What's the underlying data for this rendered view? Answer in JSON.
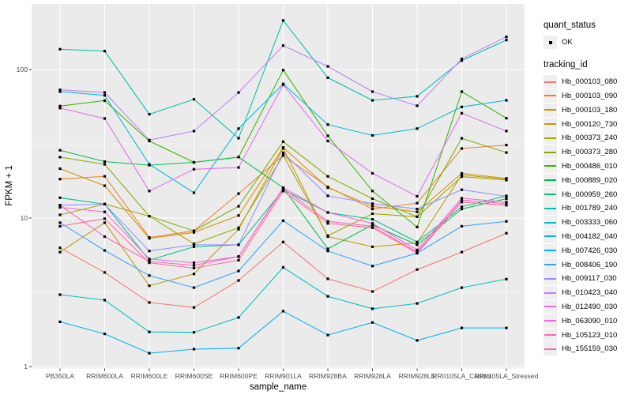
{
  "chart_data": {
    "type": "line",
    "title": "",
    "xlabel": "sample_name",
    "ylabel": "FPKM + 1",
    "y_scale": "log10",
    "y_ticks": [
      1,
      10,
      100
    ],
    "y_tick_labels": [
      "1",
      "10",
      "100"
    ],
    "y_minor_gridlines": [
      3.162,
      31.62
    ],
    "ylim": [
      0.95,
      270
    ],
    "grid": true,
    "legend_position": "right",
    "panel_background": "#EBEBEB",
    "gridline_color": "#FFFFFF",
    "tick_color": "#333333",
    "tick_label_color": "#4D4D4D",
    "marker": {
      "shape": "square",
      "color": "#000000",
      "size": 3.2
    },
    "quant_status_legend": {
      "title": "quant_status",
      "items": [
        "OK"
      ]
    },
    "tracking_legend_title": "tracking_id",
    "categories": [
      "PB350LA",
      "RRIM600LA",
      "RRIM600LE",
      "RRIM600SE",
      "RRIM600PE",
      "RRIM901LA",
      "RRIM928BA",
      "RRIM928LA",
      "RRIM928LE",
      "RRII105LA_Control",
      "RRII105LA_Stressed"
    ],
    "series": [
      {
        "name": "Hb_000103_080",
        "color": "#F8766D",
        "values": [
          6.3,
          4.3,
          2.7,
          2.5,
          3.8,
          6.9,
          3.9,
          3.2,
          4.5,
          5.9,
          7.9
        ]
      },
      {
        "name": "Hb_000103_090",
        "color": "#EA8331",
        "values": [
          18.3,
          19.1,
          7.4,
          8.2,
          14.6,
          26.4,
          16.2,
          11.5,
          12.6,
          29.4,
          31.0
        ]
      },
      {
        "name": "Hb_000103_180",
        "color": "#D89000",
        "values": [
          21.5,
          16.5,
          7.3,
          8.0,
          10.4,
          29.9,
          16.0,
          12.0,
          11.0,
          20.0,
          18.5
        ]
      },
      {
        "name": "Hb_000120_730",
        "color": "#C09B00",
        "values": [
          5.9,
          9.3,
          3.5,
          4.2,
          8.4,
          29.5,
          7.5,
          6.4,
          6.8,
          19.5,
          18.3
        ]
      },
      {
        "name": "Hb_000373_240",
        "color": "#A3A500",
        "values": [
          10.5,
          12.4,
          10.3,
          6.7,
          8.6,
          26.4,
          7.6,
          10.7,
          10.2,
          19.0,
          18.0
        ]
      },
      {
        "name": "Hb_000373_280",
        "color": "#7CAE00",
        "values": [
          25.7,
          23.0,
          10.3,
          8.2,
          12.0,
          32.7,
          19.1,
          13.5,
          10.2,
          34.4,
          27.6
        ]
      },
      {
        "name": "Hb_000486_010",
        "color": "#39B600",
        "values": [
          56.7,
          61.8,
          33.0,
          23.7,
          25.7,
          99.0,
          35.8,
          15.2,
          8.7,
          71.0,
          47.0
        ]
      },
      {
        "name": "Hb_000889_020",
        "color": "#00BB4E",
        "values": [
          28.6,
          24.0,
          22.7,
          23.7,
          25.7,
          16.0,
          6.2,
          9.0,
          6.6,
          11.5,
          13.5
        ]
      },
      {
        "name": "Hb_000959_260",
        "color": "#00C087",
        "values": [
          13.7,
          12.4,
          5.2,
          6.4,
          6.6,
          15.5,
          10.9,
          9.8,
          6.9,
          11.9,
          14.1
        ]
      },
      {
        "name": "Hb_001789_240",
        "color": "#00C0AF",
        "values": [
          137.0,
          133.0,
          50.0,
          63.0,
          34.5,
          214.0,
          88.0,
          62.0,
          66.0,
          115.0,
          158.0
        ]
      },
      {
        "name": "Hb_003333_060",
        "color": "#00BFC4",
        "values": [
          3.05,
          2.8,
          1.71,
          1.7,
          2.14,
          4.65,
          2.97,
          2.45,
          2.66,
          3.4,
          3.88
        ]
      },
      {
        "name": "Hb_004182_040",
        "color": "#00BCD8",
        "values": [
          71.0,
          67.0,
          23.0,
          14.8,
          40.0,
          80.0,
          42.6,
          36.0,
          40.0,
          56.0,
          62.0
        ]
      },
      {
        "name": "Hb_007426_030",
        "color": "#00B0F6",
        "values": [
          2.0,
          1.66,
          1.23,
          1.31,
          1.33,
          2.36,
          1.63,
          1.98,
          1.5,
          1.82,
          1.82
        ]
      },
      {
        "name": "Hb_008406_190",
        "color": "#35A2FF",
        "values": [
          9.3,
          6.05,
          4.1,
          3.4,
          4.4,
          9.6,
          6.0,
          4.75,
          5.8,
          8.8,
          9.5
        ]
      },
      {
        "name": "Hb_009117_030",
        "color": "#9590FF",
        "values": [
          12.2,
          12.4,
          6.0,
          6.6,
          6.6,
          27.5,
          14.1,
          12.5,
          11.5,
          15.5,
          14.0
        ]
      },
      {
        "name": "Hb_010423_040",
        "color": "#C77CFF",
        "values": [
          73.0,
          70.0,
          33.5,
          38.5,
          70.0,
          145.0,
          105.0,
          71.0,
          57.0,
          118.0,
          166.0
        ]
      },
      {
        "name": "Hb_012490_030",
        "color": "#E76BF3",
        "values": [
          55.0,
          46.8,
          15.2,
          21.3,
          21.9,
          79.0,
          33.0,
          20.0,
          14.0,
          50.8,
          38.5
        ]
      },
      {
        "name": "Hb_063090_010",
        "color": "#FA62DB",
        "values": [
          11.8,
          11.0,
          5.3,
          5.0,
          5.5,
          16.0,
          10.9,
          9.2,
          6.1,
          13.6,
          12.8
        ]
      },
      {
        "name": "Hb_105123_010",
        "color": "#FF62BC",
        "values": [
          12.2,
          7.5,
          5.1,
          4.8,
          5.5,
          15.8,
          9.5,
          8.8,
          5.9,
          13.2,
          12.5
        ]
      },
      {
        "name": "Hb_155159_030",
        "color": "#FF6A98",
        "values": [
          8.8,
          9.9,
          5.0,
          4.6,
          5.2,
          15.2,
          9.2,
          8.6,
          5.8,
          12.8,
          12.2
        ]
      }
    ]
  }
}
